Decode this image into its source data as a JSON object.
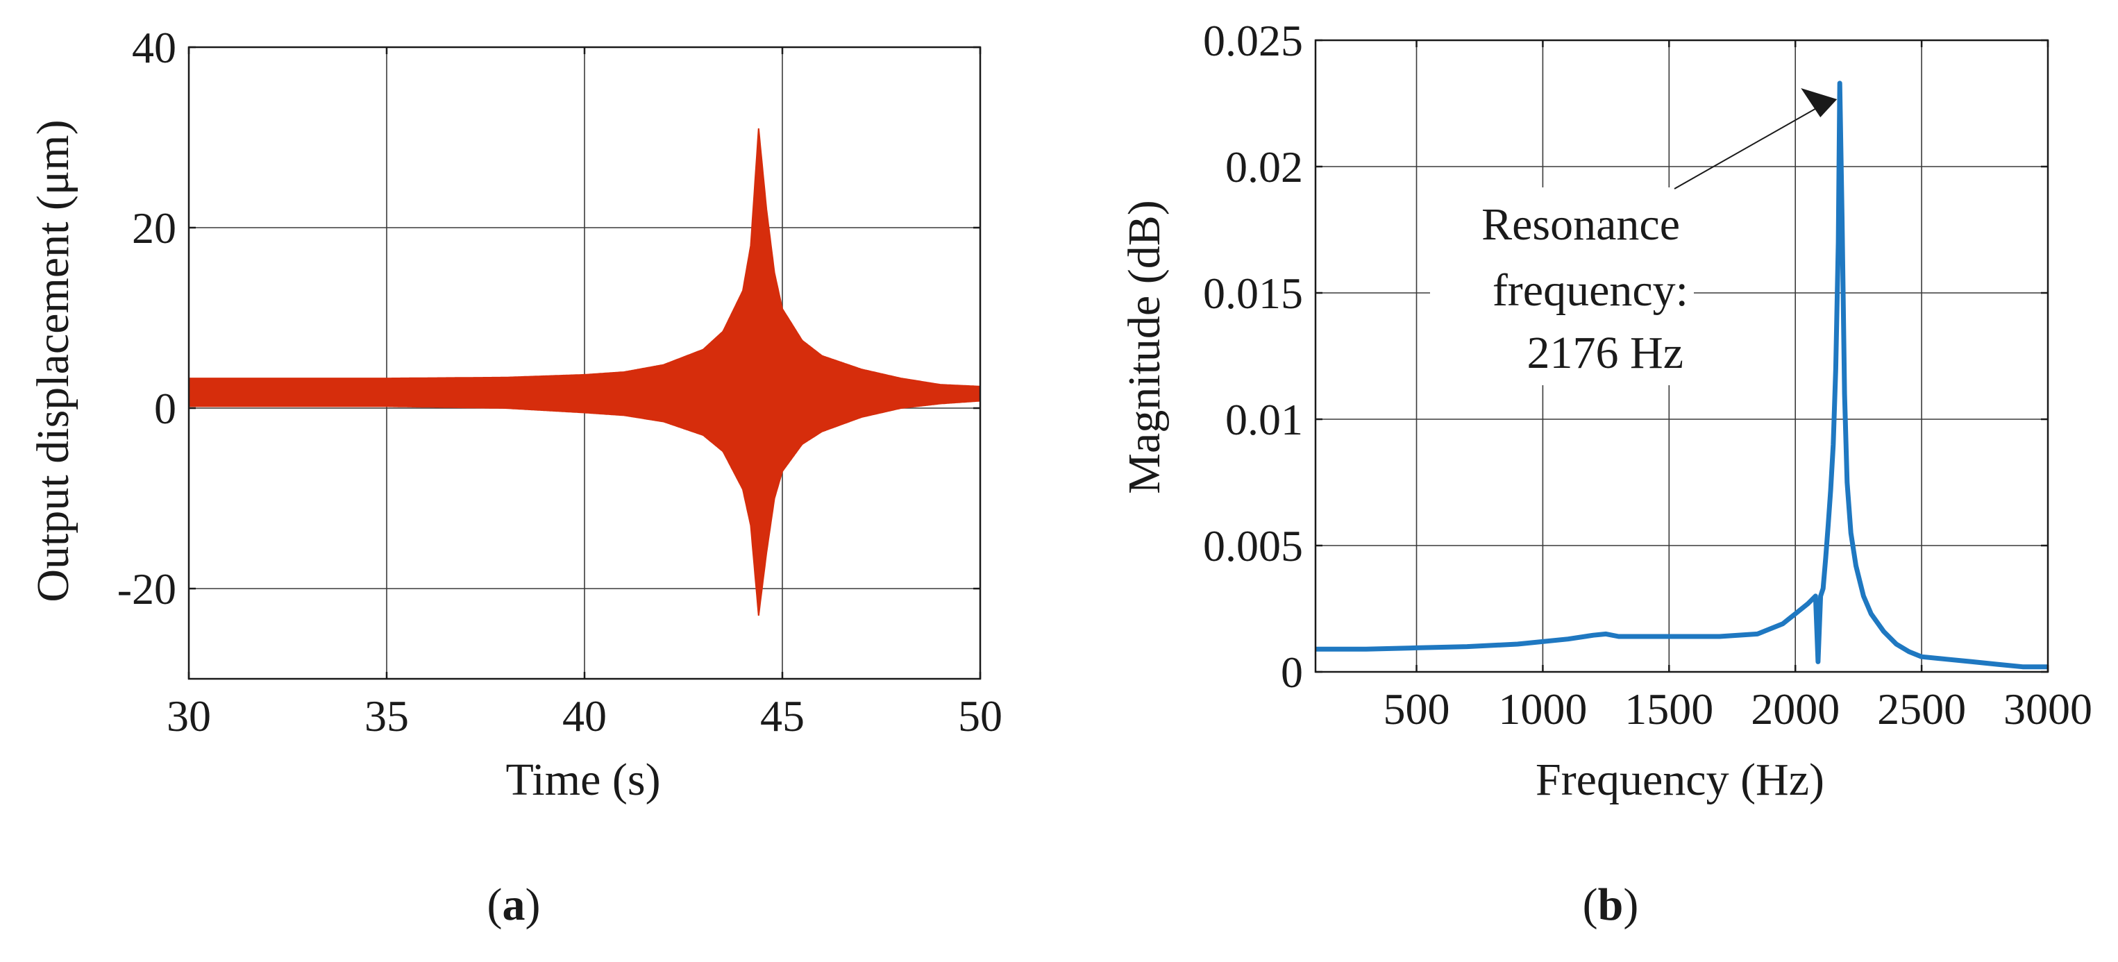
{
  "chart_data": [
    {
      "id": "a",
      "type": "line",
      "title": "",
      "caption_letter": "a",
      "xlabel": "Time (s)",
      "ylabel": "Output displacement (μm)",
      "xlim": [
        30,
        50
      ],
      "ylim": [
        -30,
        40
      ],
      "xticks": [
        30,
        35,
        40,
        45,
        50
      ],
      "yticks": [
        -20,
        0,
        20,
        40
      ],
      "xtick_labels": [
        "30",
        "35",
        "40",
        "45",
        "50"
      ],
      "ytick_labels": [
        "-20",
        "0",
        "20",
        "40"
      ],
      "grid": true,
      "color": "#d62d0c",
      "series": [
        {
          "name": "Upper envelope",
          "x": [
            30,
            35,
            38,
            40,
            41,
            42,
            43,
            43.5,
            44,
            44.2,
            44.4,
            44.6,
            44.8,
            45,
            45.5,
            46,
            47,
            48,
            49,
            50
          ],
          "values": [
            3.3,
            3.3,
            3.4,
            3.7,
            4.0,
            4.8,
            6.5,
            8.5,
            13,
            18,
            31,
            22,
            15,
            11,
            7.5,
            5.8,
            4.3,
            3.3,
            2.6,
            2.4
          ]
        },
        {
          "name": "Lower envelope",
          "x": [
            30,
            35,
            38,
            40,
            41,
            42,
            43,
            43.5,
            44,
            44.2,
            44.4,
            44.6,
            44.8,
            45,
            45.5,
            46,
            47,
            48,
            49,
            50
          ],
          "values": [
            0.2,
            0.2,
            0.0,
            -0.5,
            -0.8,
            -1.5,
            -3.0,
            -4.8,
            -9,
            -13,
            -23,
            -16,
            -10,
            -7,
            -4.0,
            -2.6,
            -1.0,
            0.0,
            0.5,
            0.8
          ]
        }
      ]
    },
    {
      "id": "b",
      "type": "line",
      "title": "",
      "caption_letter": "b",
      "xlabel": "Frequency (Hz)",
      "ylabel": "Magnitude (dB)",
      "xlim": [
        100,
        3000
      ],
      "ylim": [
        0,
        0.025
      ],
      "xticks": [
        500,
        1000,
        1500,
        2000,
        2500,
        3000
      ],
      "yticks": [
        0,
        0.005,
        0.01,
        0.015,
        0.02,
        0.025
      ],
      "xtick_labels": [
        "500",
        "1000",
        "1500",
        "2000",
        "2500",
        "3000"
      ],
      "ytick_labels": [
        "0",
        "0.005",
        "0.01",
        "0.015",
        "0.02",
        "0.025"
      ],
      "grid": true,
      "color": "#1f78c1",
      "series": [
        {
          "name": "Magnitude",
          "x": [
            100,
            300,
            500,
            700,
            900,
            1100,
            1200,
            1250,
            1300,
            1500,
            1700,
            1850,
            1950,
            2000,
            2050,
            2080,
            2090,
            2100,
            2110,
            2120,
            2130,
            2140,
            2150,
            2160,
            2170,
            2176,
            2185,
            2195,
            2205,
            2220,
            2240,
            2270,
            2300,
            2350,
            2400,
            2450,
            2500,
            2600,
            2700,
            2800,
            2900,
            3000
          ],
          "values": [
            0.0009,
            0.0009,
            0.00095,
            0.001,
            0.0011,
            0.0013,
            0.00145,
            0.0015,
            0.0014,
            0.0014,
            0.0014,
            0.0015,
            0.0019,
            0.0023,
            0.0027,
            0.003,
            0.0004,
            0.003,
            0.0033,
            0.0045,
            0.0058,
            0.0072,
            0.009,
            0.012,
            0.017,
            0.0233,
            0.018,
            0.011,
            0.0075,
            0.0055,
            0.0042,
            0.003,
            0.0023,
            0.0016,
            0.0011,
            0.0008,
            0.0006,
            0.0005,
            0.0004,
            0.0003,
            0.0002,
            0.0002
          ]
        }
      ],
      "annotation": {
        "lines": [
          "Resonance",
          "frequency:",
          "2176 Hz"
        ],
        "point": {
          "x": 2176,
          "y": 0.0225
        }
      }
    }
  ]
}
